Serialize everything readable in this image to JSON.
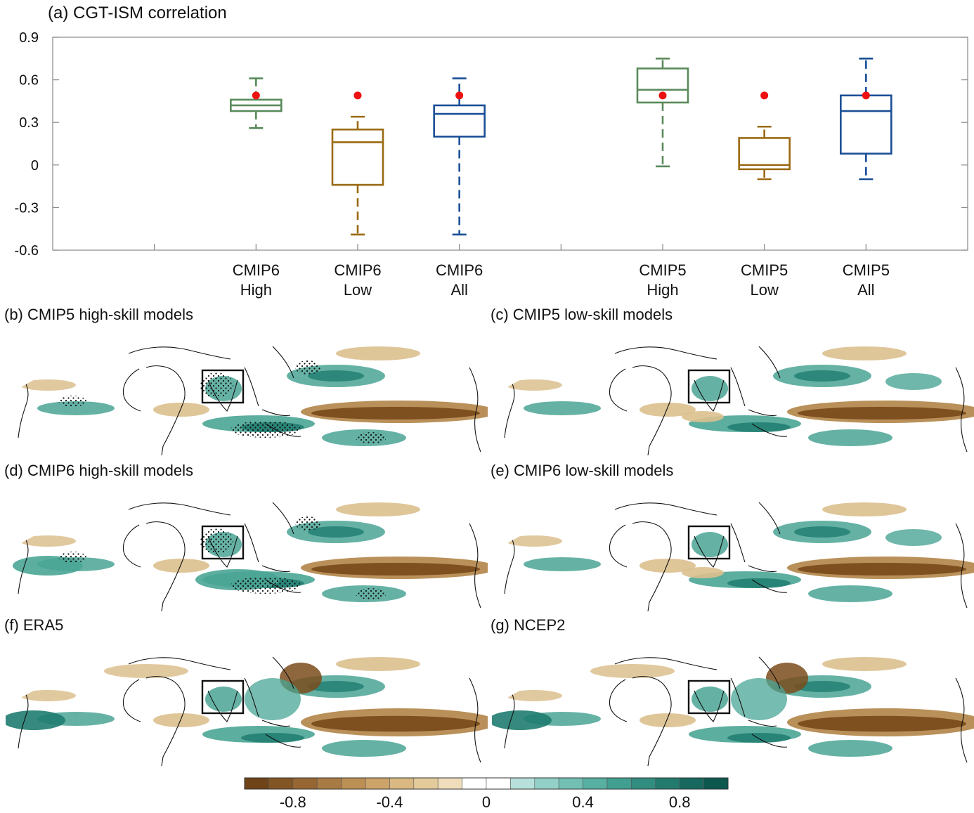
{
  "chart_data": {
    "type": "box",
    "title": "(a) CGT-ISM correlation",
    "ylim": [
      -0.6,
      0.9
    ],
    "yticks": [
      {
        "value": 0.9,
        "label": "0.9"
      },
      {
        "value": 0.6,
        "label": "0.6"
      },
      {
        "value": 0.3,
        "label": "0.3"
      },
      {
        "value": 0,
        "label": "0"
      },
      {
        "value": -0.3,
        "label": "-0.3"
      },
      {
        "value": -0.6,
        "label": "-0.6"
      }
    ],
    "xlim": [
      0,
      9
    ],
    "xticks": [
      1,
      2,
      3,
      4,
      5,
      6,
      7,
      8
    ],
    "reference_value": 0.49,
    "boxes": [
      {
        "key": "cmip6-high",
        "x": 2,
        "line1": "CMIP6",
        "line2": "High",
        "color": "#5a8a5a",
        "min": 0.26,
        "q1": 0.38,
        "median": 0.42,
        "q3": 0.46,
        "max": 0.61
      },
      {
        "key": "cmip6-low",
        "x": 3,
        "line1": "CMIP6",
        "line2": "Low",
        "color": "#9a6a12",
        "min": -0.49,
        "q1": -0.14,
        "median": 0.16,
        "q3": 0.25,
        "max": 0.34
      },
      {
        "key": "cmip6-all",
        "x": 4,
        "line1": "CMIP6",
        "line2": "All",
        "color": "#1a4f96",
        "min": -0.49,
        "q1": 0.2,
        "median": 0.36,
        "q3": 0.42,
        "max": 0.61
      },
      {
        "key": "cmip5-high",
        "x": 6,
        "line1": "CMIP5",
        "line2": "High",
        "color": "#5a8a5a",
        "min": -0.01,
        "q1": 0.44,
        "median": 0.53,
        "q3": 0.68,
        "max": 0.75
      },
      {
        "key": "cmip5-low",
        "x": 7,
        "line1": "CMIP5",
        "line2": "Low",
        "color": "#9a6a12",
        "min": -0.1,
        "q1": -0.03,
        "median": 0.0,
        "q3": 0.19,
        "max": 0.27
      },
      {
        "key": "cmip5-all",
        "x": 8,
        "line1": "CMIP5",
        "line2": "All",
        "color": "#1a4f96",
        "min": -0.1,
        "q1": 0.08,
        "median": 0.38,
        "q3": 0.49,
        "max": 0.75
      }
    ]
  },
  "maps": [
    {
      "key": "b",
      "title": "(b) CMIP5 high-skill models",
      "stippled": true
    },
    {
      "key": "c",
      "title": "(c) CMIP5 low-skill models",
      "stippled": false
    },
    {
      "key": "d",
      "title": "(d) CMIP6 high-skill models",
      "stippled": true
    },
    {
      "key": "e",
      "title": "(e) CMIP6 low-skill models",
      "stippled": false
    },
    {
      "key": "f",
      "title": "(f) ERA5",
      "stippled": false
    },
    {
      "key": "g",
      "title": "(g) NCEP2",
      "stippled": false
    }
  ],
  "colorbar": {
    "colors": [
      "#6e4418",
      "#835525",
      "#966733",
      "#a97b44",
      "#bc8f55",
      "#cca46a",
      "#d9b882",
      "#e4cb9c",
      "#efddbb",
      "#ffffff",
      "#ffffff",
      "#b7e0da",
      "#93d0c7",
      "#72c0b4",
      "#57b0a2",
      "#419f91",
      "#318d80",
      "#237b6f",
      "#17695f",
      "#0c584f"
    ],
    "ticks": [
      {
        "value": -0.8,
        "label": "-0.8"
      },
      {
        "value": -0.4,
        "label": "-0.4"
      },
      {
        "value": 0,
        "label": "0"
      },
      {
        "value": 0.4,
        "label": "0.4"
      },
      {
        "value": 0.8,
        "label": "0.8"
      }
    ],
    "range": [
      -1.0,
      1.0
    ]
  },
  "colors": {
    "reference_dot": "#ee1111",
    "land_outline": "#111111",
    "brown": "#b58a50",
    "teal": "#4aa595",
    "box_outline": "#111111"
  }
}
